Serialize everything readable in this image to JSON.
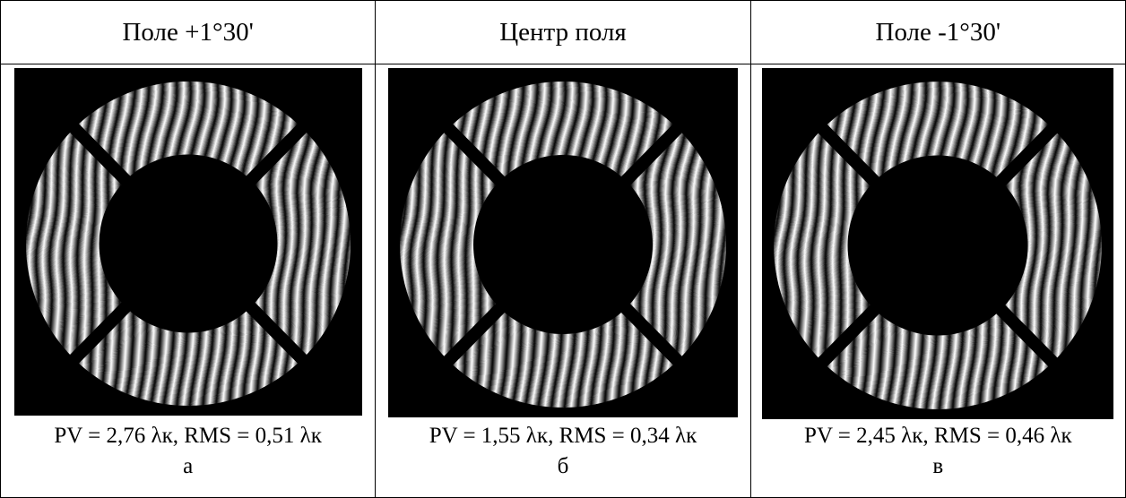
{
  "table": {
    "headers": [
      "Поле +1°30'",
      "Центр поля",
      "Поле -1°30'"
    ],
    "captions": [
      "PV = 2,76 λк, RMS = 0,51 λк",
      "PV = 1,55 λк, RMS = 0,34 λк",
      "PV = 2,45 λк, RMS = 0,46 λк"
    ],
    "letters": [
      "а",
      "б",
      "в"
    ]
  }
}
